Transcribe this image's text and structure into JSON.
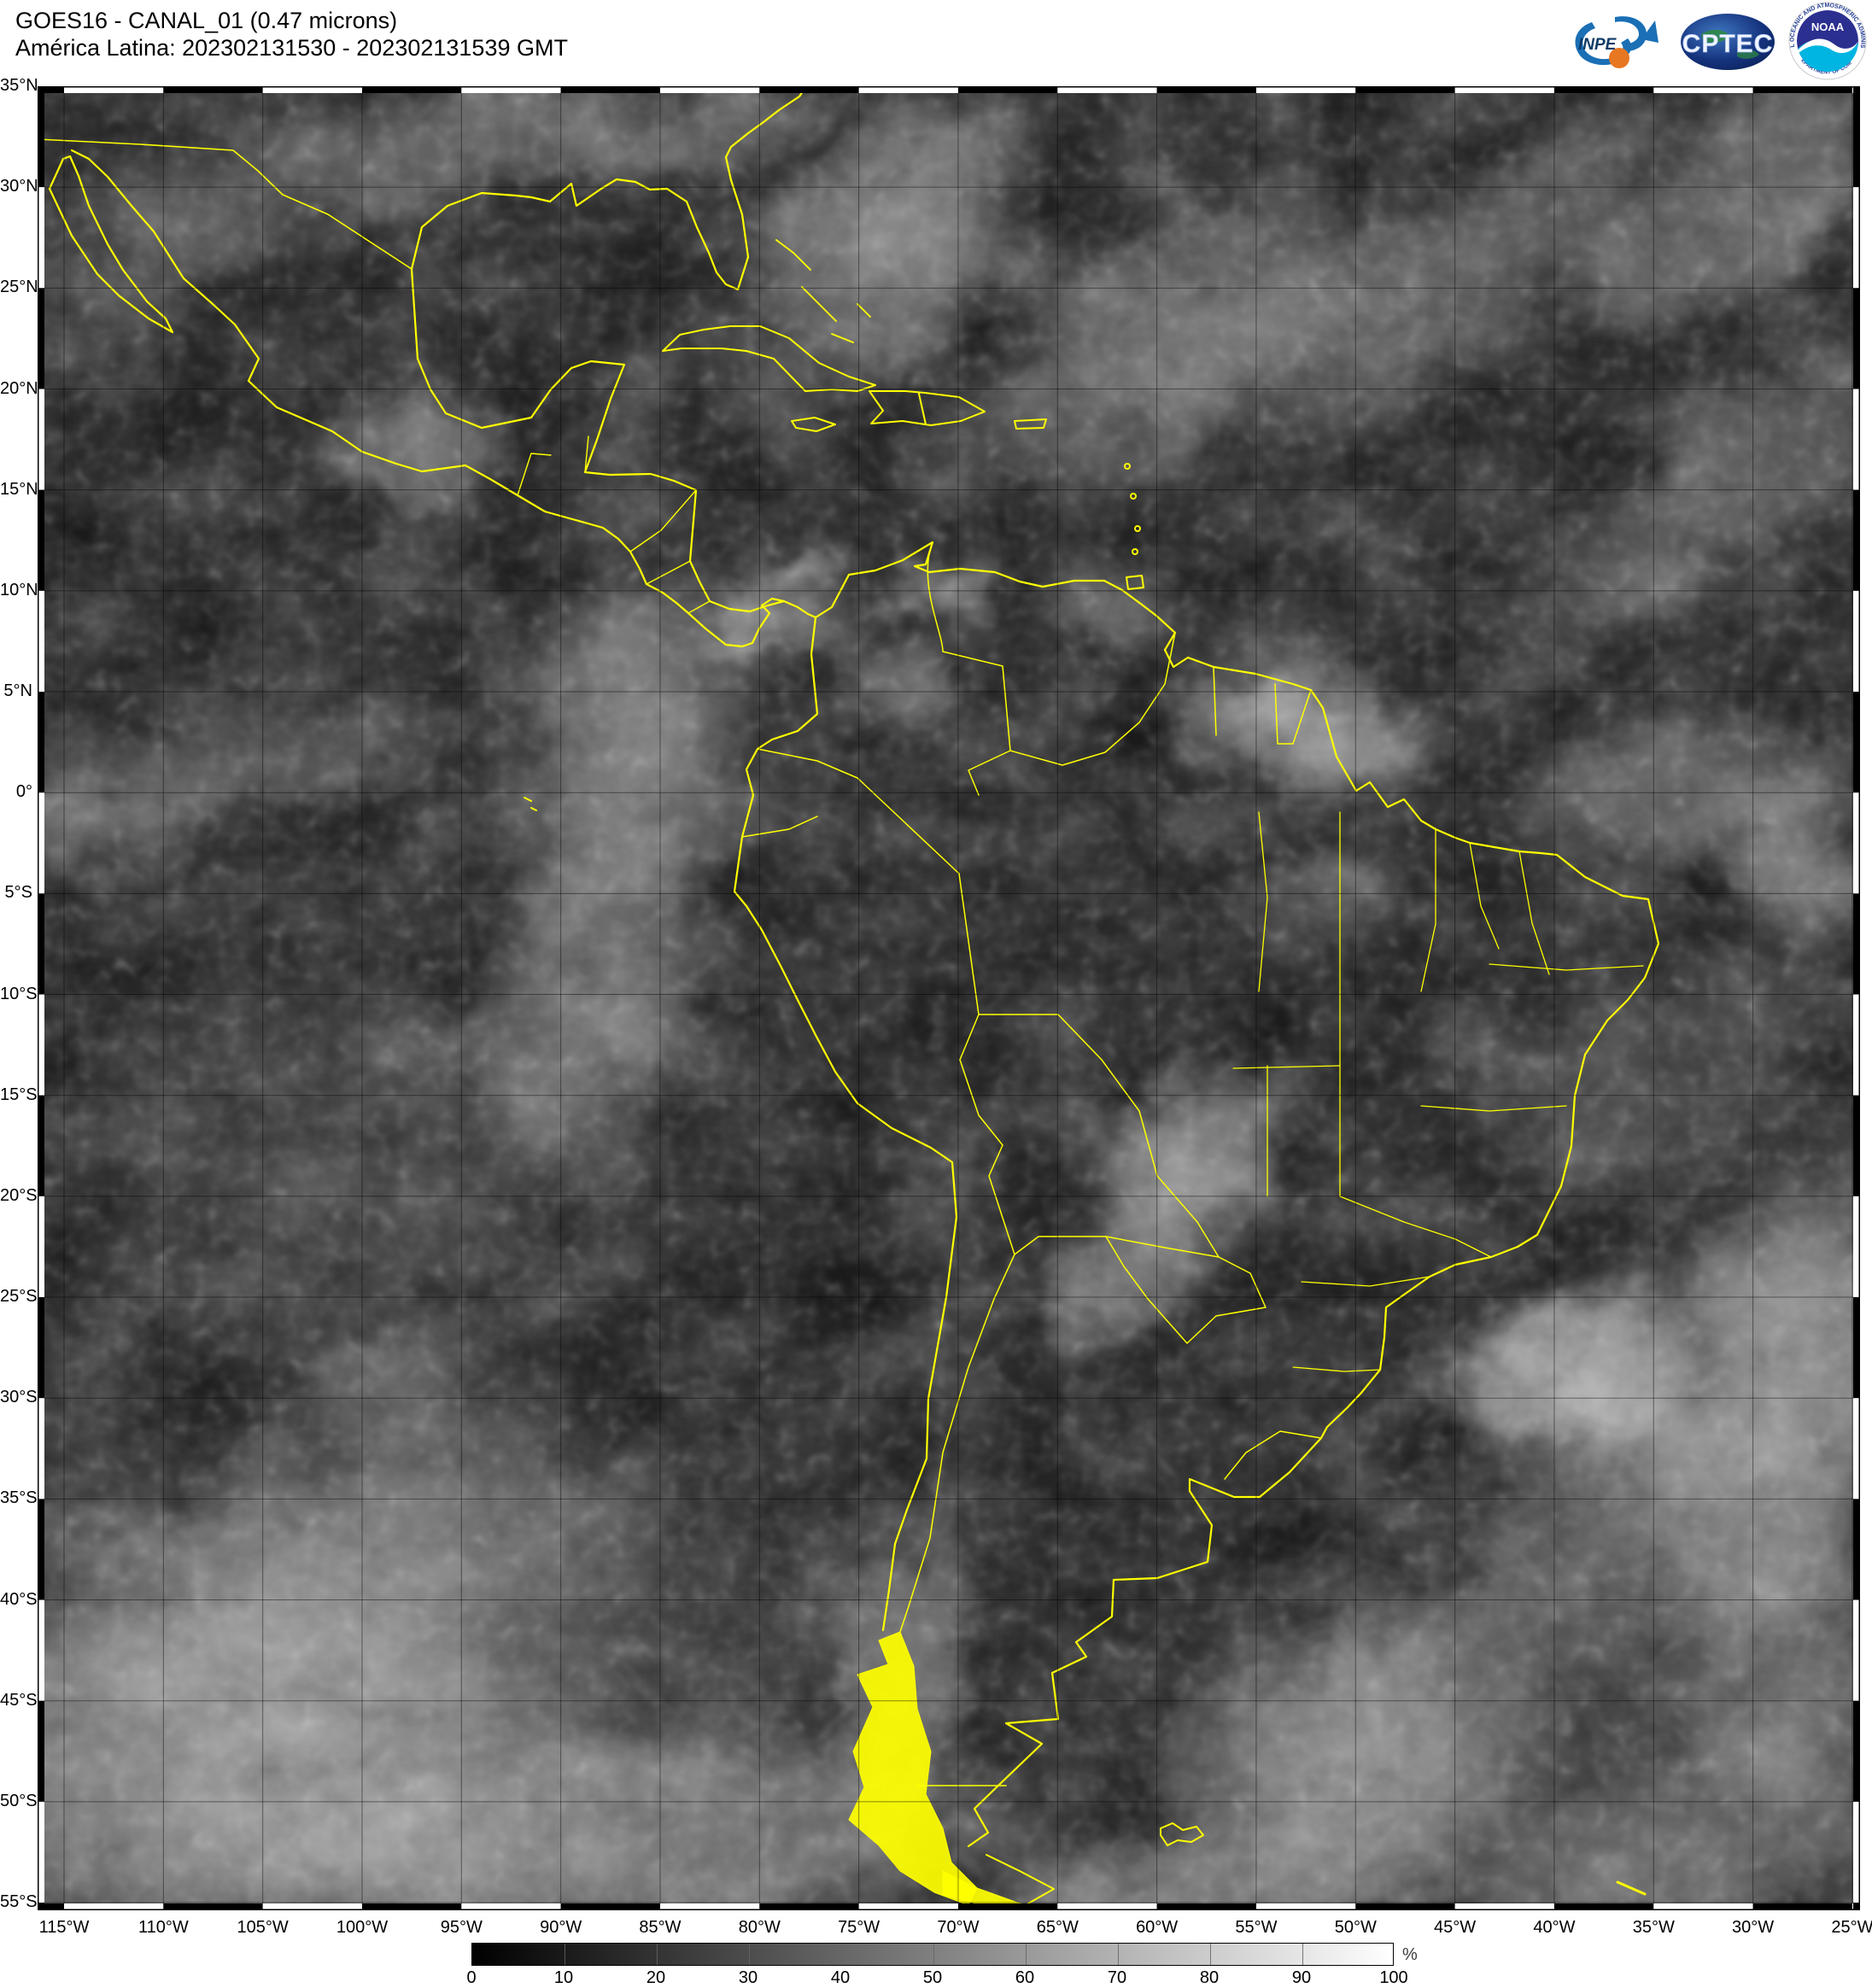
{
  "header": {
    "title_line1": "GOES16 - CANAL_01 (0.47 microns)",
    "title_line2": "América Latina: 202302131530 - 202302131539 GMT"
  },
  "logos": {
    "inpe_text": "INPE",
    "cptec_text": "CPTEC",
    "noaa_text": "NOAA",
    "noaa_ring_top": "NATIONAL OCEANIC AND ATMOSPHERIC ADMINISTRATION",
    "noaa_ring_bottom": "U.S. DEPARTMENT OF COMMERCE"
  },
  "map": {
    "lat_labels": [
      "35°N",
      "30°N",
      "25°N",
      "20°N",
      "15°N",
      "10°N",
      "5°N",
      "0°",
      "5°S",
      "10°S",
      "15°S",
      "20°S",
      "25°S",
      "30°S",
      "35°S",
      "40°S",
      "45°S",
      "50°S",
      "55°S"
    ],
    "lon_labels": [
      "115°W",
      "110°W",
      "105°W",
      "100°W",
      "95°W",
      "90°W",
      "85°W",
      "80°W",
      "75°W",
      "70°W",
      "65°W",
      "60°W",
      "55°W",
      "50°W",
      "45°W",
      "40°W",
      "35°W",
      "30°W",
      "25°W"
    ],
    "border_color": "#ffff00"
  },
  "colorbar": {
    "tick_labels": [
      "0",
      "10",
      "20",
      "30",
      "40",
      "50",
      "60",
      "70",
      "80",
      "90",
      "100"
    ],
    "unit": "%",
    "gradient_start": "#000000",
    "gradient_end": "#ffffff"
  }
}
